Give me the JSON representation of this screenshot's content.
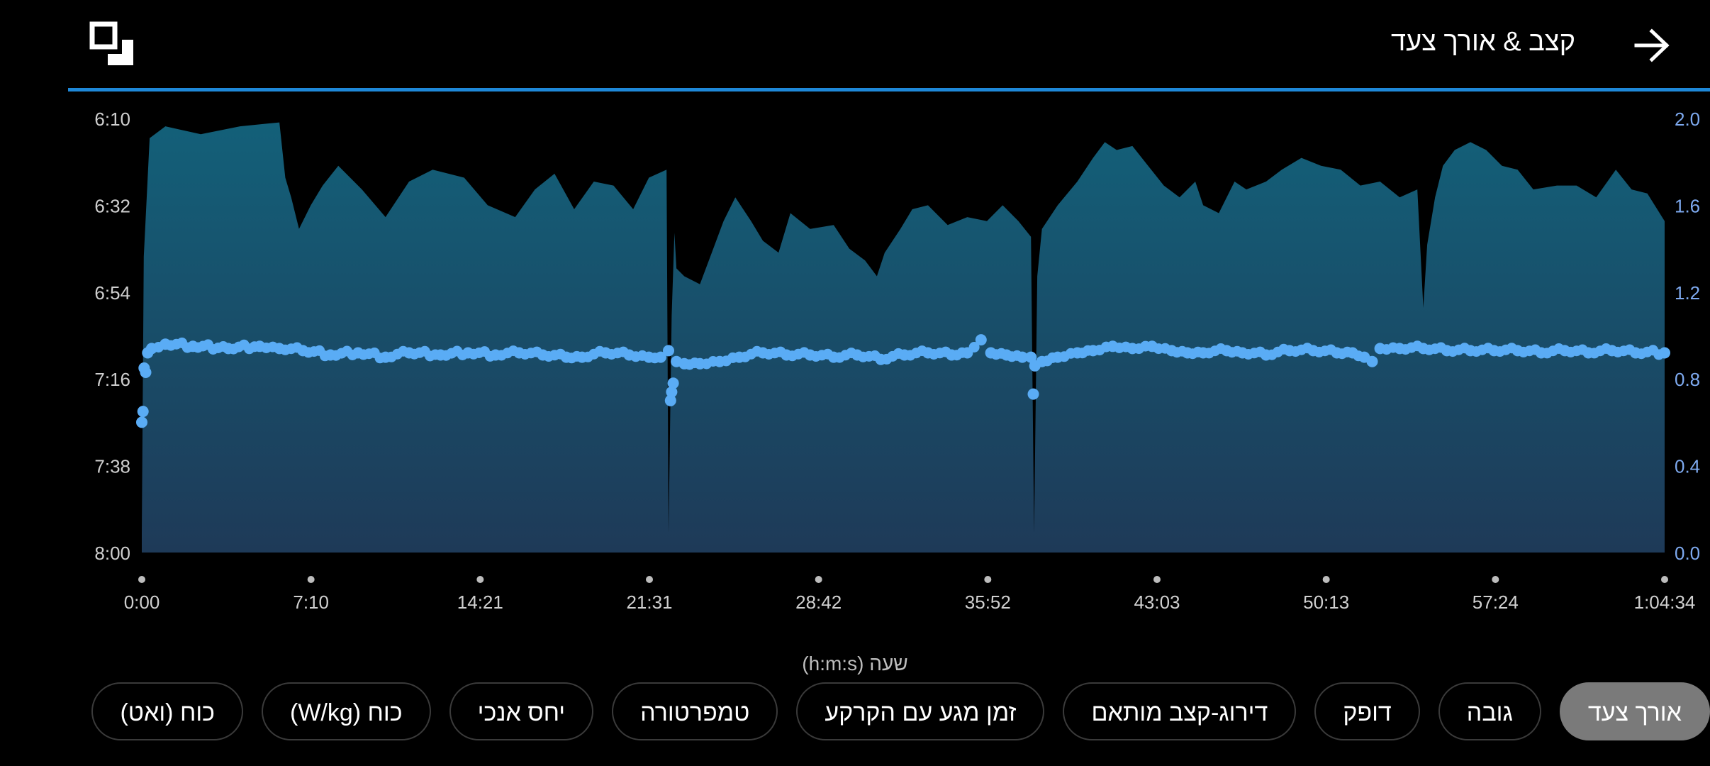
{
  "header": {
    "title": "קצב & אורך צעד"
  },
  "icons": {
    "expand": "expand-icon",
    "back": "arrow-right-icon"
  },
  "chart_data": {
    "type": "area",
    "x_ticks": [
      "0:00",
      "7:10",
      "14:21",
      "21:31",
      "28:42",
      "35:52",
      "43:03",
      "50:13",
      "57:24",
      "1:04:34"
    ],
    "x_unit_label": "שעה (h:m:s)",
    "y_left_ticks": [
      "6:10",
      "6:32",
      "6:54",
      "7:16",
      "7:38",
      "8:00"
    ],
    "y_right_ticks": [
      "2.0",
      "1.6",
      "1.2",
      "0.8",
      "0.4",
      "0.0"
    ],
    "x_range_seconds": [
      0,
      3874
    ],
    "y_left_range_seconds": [
      370,
      480
    ],
    "y_right_range": [
      0.0,
      2.0
    ],
    "series": [
      {
        "kind": "area",
        "axis": "left",
        "color": "#16607a",
        "points": [
          [
            0,
            475
          ],
          [
            5,
            405
          ],
          [
            20,
            375
          ],
          [
            60,
            372
          ],
          [
            150,
            374
          ],
          [
            250,
            372
          ],
          [
            350,
            371
          ],
          [
            365,
            385
          ],
          [
            380,
            390
          ],
          [
            400,
            398
          ],
          [
            430,
            392
          ],
          [
            460,
            387
          ],
          [
            500,
            382
          ],
          [
            560,
            388
          ],
          [
            620,
            395
          ],
          [
            680,
            386
          ],
          [
            740,
            383
          ],
          [
            820,
            385
          ],
          [
            880,
            392
          ],
          [
            950,
            395
          ],
          [
            1000,
            388
          ],
          [
            1050,
            384
          ],
          [
            1100,
            393
          ],
          [
            1150,
            386
          ],
          [
            1200,
            387
          ],
          [
            1250,
            393
          ],
          [
            1290,
            385
          ],
          [
            1335,
            383
          ],
          [
            1340,
            475
          ],
          [
            1348,
            420
          ],
          [
            1355,
            399
          ],
          [
            1360,
            408
          ],
          [
            1380,
            410
          ],
          [
            1420,
            412
          ],
          [
            1450,
            404
          ],
          [
            1480,
            396
          ],
          [
            1510,
            390
          ],
          [
            1550,
            396
          ],
          [
            1580,
            401
          ],
          [
            1620,
            404
          ],
          [
            1650,
            394
          ],
          [
            1700,
            398
          ],
          [
            1760,
            397
          ],
          [
            1800,
            403
          ],
          [
            1840,
            406
          ],
          [
            1870,
            410
          ],
          [
            1890,
            404
          ],
          [
            1930,
            398
          ],
          [
            1960,
            393
          ],
          [
            2000,
            392
          ],
          [
            2050,
            397
          ],
          [
            2100,
            395
          ],
          [
            2150,
            396
          ],
          [
            2190,
            392
          ],
          [
            2230,
            396
          ],
          [
            2262,
            400
          ],
          [
            2270,
            475
          ],
          [
            2278,
            410
          ],
          [
            2290,
            398
          ],
          [
            2330,
            392
          ],
          [
            2380,
            386
          ],
          [
            2420,
            380
          ],
          [
            2450,
            376
          ],
          [
            2480,
            378
          ],
          [
            2520,
            377
          ],
          [
            2560,
            382
          ],
          [
            2600,
            387
          ],
          [
            2640,
            390
          ],
          [
            2680,
            386
          ],
          [
            2700,
            392
          ],
          [
            2740,
            394
          ],
          [
            2780,
            386
          ],
          [
            2810,
            388
          ],
          [
            2860,
            386
          ],
          [
            2900,
            383
          ],
          [
            2950,
            380
          ],
          [
            3000,
            382
          ],
          [
            3050,
            383
          ],
          [
            3100,
            387
          ],
          [
            3150,
            386
          ],
          [
            3200,
            390
          ],
          [
            3245,
            388
          ],
          [
            3260,
            418
          ],
          [
            3270,
            402
          ],
          [
            3290,
            390
          ],
          [
            3310,
            382
          ],
          [
            3340,
            378
          ],
          [
            3380,
            376
          ],
          [
            3420,
            378
          ],
          [
            3460,
            382
          ],
          [
            3500,
            383
          ],
          [
            3540,
            388
          ],
          [
            3600,
            387
          ],
          [
            3650,
            387
          ],
          [
            3700,
            390
          ],
          [
            3750,
            383
          ],
          [
            3790,
            388
          ],
          [
            3830,
            389
          ],
          [
            3874,
            396
          ]
        ]
      },
      {
        "kind": "scatter",
        "axis": "right",
        "color": "#5aacf5",
        "points": [
          [
            0,
            0.6
          ],
          [
            3,
            0.65
          ],
          [
            6,
            0.85
          ],
          [
            10,
            0.83
          ],
          [
            15,
            0.92
          ],
          [
            25,
            0.94
          ],
          [
            60,
            0.96
          ],
          [
            130,
            0.95
          ],
          [
            220,
            0.94
          ],
          [
            300,
            0.95
          ],
          [
            350,
            0.94
          ],
          [
            410,
            0.93
          ],
          [
            480,
            0.91
          ],
          [
            550,
            0.92
          ],
          [
            620,
            0.9
          ],
          [
            680,
            0.92
          ],
          [
            760,
            0.91
          ],
          [
            830,
            0.92
          ],
          [
            900,
            0.91
          ],
          [
            960,
            0.92
          ],
          [
            1020,
            0.91
          ],
          [
            1080,
            0.9
          ],
          [
            1120,
            0.9
          ],
          [
            1180,
            0.92
          ],
          [
            1240,
            0.91
          ],
          [
            1290,
            0.9
          ],
          [
            1320,
            0.9
          ],
          [
            1340,
            0.93
          ],
          [
            1345,
            0.7
          ],
          [
            1348,
            0.74
          ],
          [
            1352,
            0.78
          ],
          [
            1360,
            0.88
          ],
          [
            1380,
            0.87
          ],
          [
            1420,
            0.87
          ],
          [
            1470,
            0.88
          ],
          [
            1520,
            0.9
          ],
          [
            1580,
            0.92
          ],
          [
            1640,
            0.91
          ],
          [
            1700,
            0.91
          ],
          [
            1760,
            0.9
          ],
          [
            1820,
            0.91
          ],
          [
            1880,
            0.89
          ],
          [
            1940,
            0.91
          ],
          [
            2000,
            0.92
          ],
          [
            2060,
            0.91
          ],
          [
            2100,
            0.92
          ],
          [
            2135,
            0.98
          ],
          [
            2160,
            0.92
          ],
          [
            2200,
            0.91
          ],
          [
            2240,
            0.9
          ],
          [
            2262,
            0.9
          ],
          [
            2268,
            0.73
          ],
          [
            2272,
            0.86
          ],
          [
            2290,
            0.88
          ],
          [
            2330,
            0.9
          ],
          [
            2380,
            0.92
          ],
          [
            2420,
            0.93
          ],
          [
            2470,
            0.95
          ],
          [
            2520,
            0.94
          ],
          [
            2570,
            0.95
          ],
          [
            2620,
            0.93
          ],
          [
            2660,
            0.92
          ],
          [
            2700,
            0.92
          ],
          [
            2760,
            0.93
          ],
          [
            2800,
            0.92
          ],
          [
            2860,
            0.91
          ],
          [
            2920,
            0.93
          ],
          [
            2980,
            0.93
          ],
          [
            3040,
            0.92
          ],
          [
            3080,
            0.92
          ],
          [
            3110,
            0.9
          ],
          [
            3130,
            0.88
          ],
          [
            3150,
            0.94
          ],
          [
            3200,
            0.94
          ],
          [
            3260,
            0.94
          ],
          [
            3320,
            0.93
          ],
          [
            3380,
            0.93
          ],
          [
            3440,
            0.93
          ],
          [
            3500,
            0.93
          ],
          [
            3560,
            0.92
          ],
          [
            3620,
            0.93
          ],
          [
            3680,
            0.92
          ],
          [
            3740,
            0.93
          ],
          [
            3800,
            0.92
          ],
          [
            3874,
            0.92
          ]
        ]
      }
    ],
    "grid": false
  },
  "chips": [
    {
      "label": "אורך צעד",
      "active": true
    },
    {
      "label": "גובה",
      "active": false
    },
    {
      "label": "דופק",
      "active": false
    },
    {
      "label": "דירוג-קצב מותאם",
      "active": false
    },
    {
      "label": "זמן מגע עם הקרקע",
      "active": false
    },
    {
      "label": "טמפרטורה",
      "active": false
    },
    {
      "label": "יחס אנכי",
      "active": false
    },
    {
      "label": "כוח (W/kg)",
      "active": false
    },
    {
      "label": "כוח (ואט)",
      "active": false
    }
  ]
}
